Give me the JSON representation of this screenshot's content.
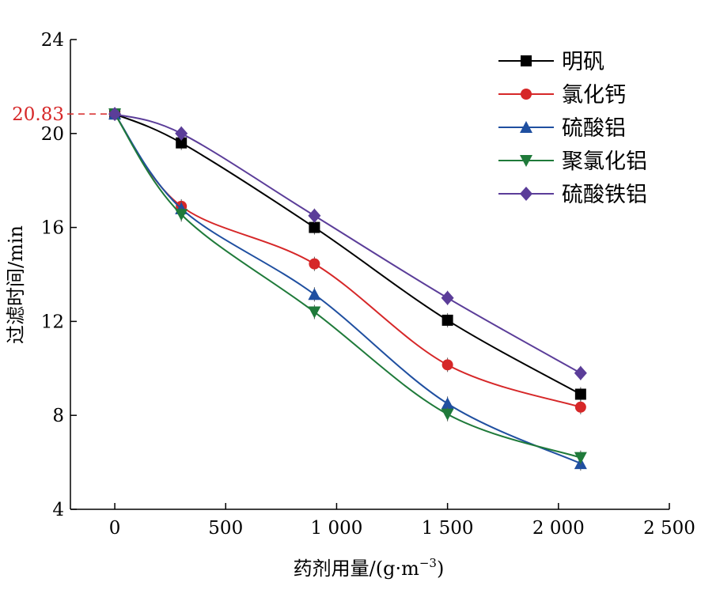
{
  "chart_data": {
    "type": "line",
    "title": "",
    "xlabel": "药剂用量/(g·m",
    "xlabel_sup": "−3",
    "xlabel_tail": ")",
    "ylabel": "过滤时间/min",
    "xlim": [
      -200,
      2500
    ],
    "ylim": [
      4,
      24
    ],
    "x_ticks": [
      0,
      500,
      1000,
      1500,
      2000,
      2500
    ],
    "x_tick_labels": [
      "0",
      "500",
      "1 000",
      "1 500",
      "2 000",
      "2 500"
    ],
    "y_ticks": [
      4,
      8,
      12,
      16,
      20,
      24
    ],
    "y_tick_labels": [
      "4",
      "8",
      "12",
      "16",
      "20",
      "24"
    ],
    "reference_line": {
      "y": 20.83,
      "label": "20.83",
      "color": "#d62728"
    },
    "legend_position": "top-right",
    "grid": false,
    "x": [
      0,
      300,
      900,
      1500,
      2100
    ],
    "series": [
      {
        "name": "明矾",
        "values": [
          20.83,
          19.6,
          16.0,
          12.05,
          8.9
        ],
        "color": "#000000",
        "marker": "square"
      },
      {
        "name": "氯化钙",
        "values": [
          20.83,
          16.9,
          14.45,
          10.15,
          8.35
        ],
        "color": "#d62728",
        "marker": "circle"
      },
      {
        "name": "硫酸铝",
        "values": [
          20.83,
          16.8,
          13.15,
          8.5,
          5.95
        ],
        "color": "#1f4fa0",
        "marker": "triangle-up"
      },
      {
        "name": "聚氯化铝",
        "values": [
          20.83,
          16.55,
          12.4,
          8.05,
          6.2
        ],
        "color": "#1f7a3a",
        "marker": "triangle-down"
      },
      {
        "name": "硫酸铁铝",
        "values": [
          20.83,
          20.0,
          16.5,
          13.0,
          9.8
        ],
        "color": "#5b3d99",
        "marker": "diamond"
      }
    ]
  }
}
